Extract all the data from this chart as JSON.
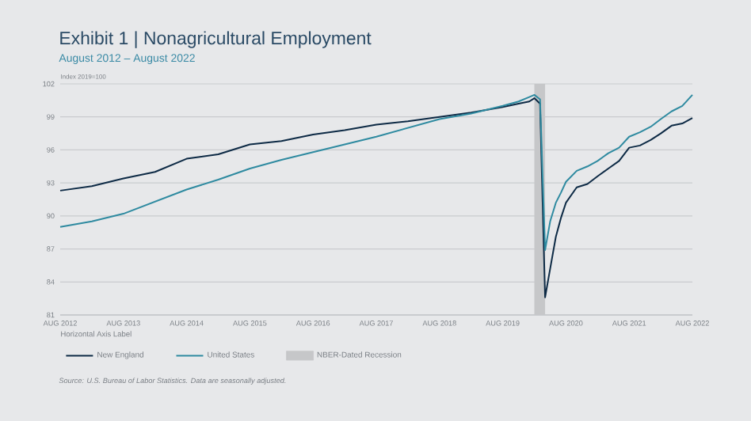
{
  "chart_data": {
    "type": "line",
    "title": "Exhibit 1  |  Nonagricultural Employment",
    "subtitle": "August 2012 – August 2022",
    "ylabel": "Index 2019=100",
    "xlabel": "Horizontal Axis Label",
    "x": [
      "2012-08",
      "2013-02",
      "2013-08",
      "2014-02",
      "2014-08",
      "2015-02",
      "2015-08",
      "2016-02",
      "2016-08",
      "2017-02",
      "2017-08",
      "2018-02",
      "2018-08",
      "2019-02",
      "2019-08",
      "2019-11",
      "2020-01",
      "2020-02",
      "2020-03",
      "2020-04",
      "2020-05",
      "2020-06",
      "2020-07",
      "2020-08",
      "2020-10",
      "2020-12",
      "2021-02",
      "2021-04",
      "2021-06",
      "2021-08",
      "2021-10",
      "2021-12",
      "2022-02",
      "2022-04",
      "2022-06",
      "2022-08"
    ],
    "series": [
      {
        "name": "New England",
        "color": "#0d2a45",
        "values": [
          92.3,
          92.7,
          93.4,
          94.0,
          95.2,
          95.6,
          96.5,
          96.8,
          97.4,
          97.8,
          98.3,
          98.6,
          99.0,
          99.4,
          99.9,
          100.2,
          100.4,
          100.7,
          100.2,
          82.6,
          85.2,
          88.1,
          89.8,
          91.2,
          92.6,
          92.9,
          93.6,
          94.3,
          95.0,
          96.2,
          96.4,
          96.9,
          97.5,
          98.2,
          98.4,
          98.9
        ]
      },
      {
        "name": "United States",
        "color": "#2e8aa0",
        "values": [
          89.0,
          89.5,
          90.2,
          91.3,
          92.4,
          93.3,
          94.3,
          95.1,
          95.8,
          96.5,
          97.2,
          98.0,
          98.8,
          99.3,
          100.0,
          100.4,
          100.8,
          101.0,
          100.6,
          86.9,
          89.5,
          91.2,
          92.1,
          93.1,
          94.1,
          94.5,
          95.0,
          95.7,
          96.2,
          97.2,
          97.6,
          98.1,
          98.8,
          99.5,
          100.0,
          101.0
        ]
      }
    ],
    "xlim": [
      "2012-08",
      "2022-08"
    ],
    "xticks": [
      {
        "value": "2012-08",
        "label": "AUG 2012"
      },
      {
        "value": "2013-08",
        "label": "AUG 2013"
      },
      {
        "value": "2014-08",
        "label": "AUG 2014"
      },
      {
        "value": "2015-08",
        "label": "AUG 2015"
      },
      {
        "value": "2016-08",
        "label": "AUG 2016"
      },
      {
        "value": "2017-08",
        "label": "AUG 2017"
      },
      {
        "value": "2018-08",
        "label": "AUG 2018"
      },
      {
        "value": "2019-08",
        "label": "AUG 2019"
      },
      {
        "value": "2020-08",
        "label": "AUG 2020"
      },
      {
        "value": "2021-08",
        "label": "AUG 2021"
      },
      {
        "value": "2022-08",
        "label": "AUG 2022"
      }
    ],
    "ylim": [
      81,
      102
    ],
    "yticks": [
      81,
      84,
      87,
      90,
      93,
      96,
      99,
      102
    ],
    "bands": [
      {
        "axis": "x",
        "from": "2020-02",
        "to": "2020-04",
        "label": "NBER-Dated Recession",
        "color": "#c6c7c9"
      }
    ],
    "grid": "y",
    "legend": "bottom",
    "marker": "none",
    "line_style": "solid",
    "annotations": [
      "Source: U.S. Bureau of Labor Statistics. Data are seasonally adjusted."
    ]
  }
}
